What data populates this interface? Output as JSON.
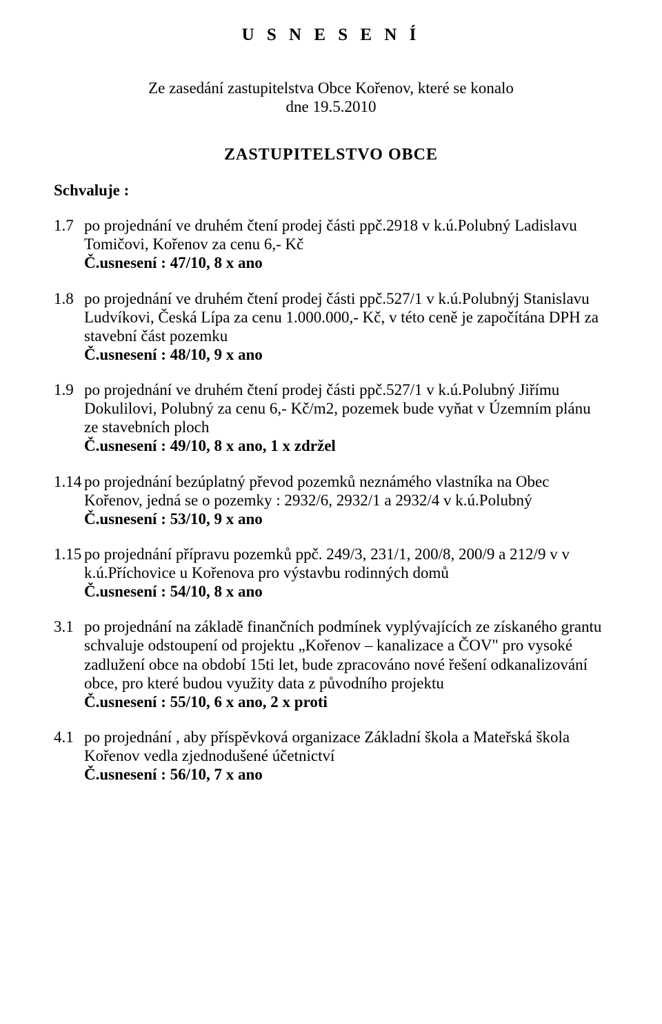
{
  "title": "U S N E S E N Í",
  "intro_line1": "Ze zasedání zastupitelstva Obce Kořenov, které se konalo",
  "intro_line2": "dne 19.5.2010",
  "subtitle": "ZASTUPITELSTVO  OBCE",
  "schvaluje_heading": "Schvaluje :",
  "items": [
    {
      "num": "1.7",
      "text": "po projednání ve druhém čtení prodej části ppč.2918 v k.ú.Polubný Ladislavu Tomičovi, Kořenov za cenu 6,- Kč",
      "res": "Č.usnesení : 47/10, 8 x ano"
    },
    {
      "num": "1.8",
      "text": "po projednání ve druhém čtení prodej části ppč.527/1 v k.ú.Polubnýj Stanislavu Ludvíkovi, Česká Lípa za cenu 1.000.000,- Kč, v této ceně je započítána DPH za stavební část pozemku",
      "res": "Č.usnesení : 48/10, 9 x ano"
    },
    {
      "num": "1.9",
      "text": "po projednání ve druhém čtení prodej části ppč.527/1 v k.ú.Polubný Jiřímu Dokulilovi, Polubný za cenu 6,- Kč/m2, pozemek bude vyňat v Územním plánu ze stavebních ploch",
      "res": "Č.usnesení : 49/10, 8 x ano, 1 x zdržel"
    },
    {
      "num": "1.14",
      "text": "po projednání  bezúplatný převod pozemků neznámého vlastníka na Obec Kořenov, jedná se o pozemky : 2932/6, 2932/1 a 2932/4 v k.ú.Polubný",
      "res": "Č.usnesení :  53/10, 9 x ano"
    },
    {
      "num": "1.15",
      "text": "po projednání  přípravu pozemků ppč. 249/3, 231/1, 200/8, 200/9 a 212/9 v v k.ú.Příchovice u Kořenova pro výstavbu rodinných domů",
      "res": "Č.usnesení : 54/10, 8 x ano"
    },
    {
      "num": "3.1",
      "text": "po projednání na základě finančních podmínek vyplývajících ze získaného grantu schvaluje odstoupení od projektu „Kořenov – kanalizace a ČOV\" pro vysoké zadlužení obce na období 15ti let, bude zpracováno nové řešení odkanalizování obce, pro které budou využity data z původního projektu",
      "res": "Č.usnesení : 55/10, 6 x ano, 2 x proti"
    },
    {
      "num": "4.1",
      "text": "po projednání , aby příspěvková organizace Základní škola a Mateřská škola Kořenov vedla zjednodušené účetnictví",
      "res": "Č.usnesení : 56/10, 7 x ano"
    }
  ]
}
